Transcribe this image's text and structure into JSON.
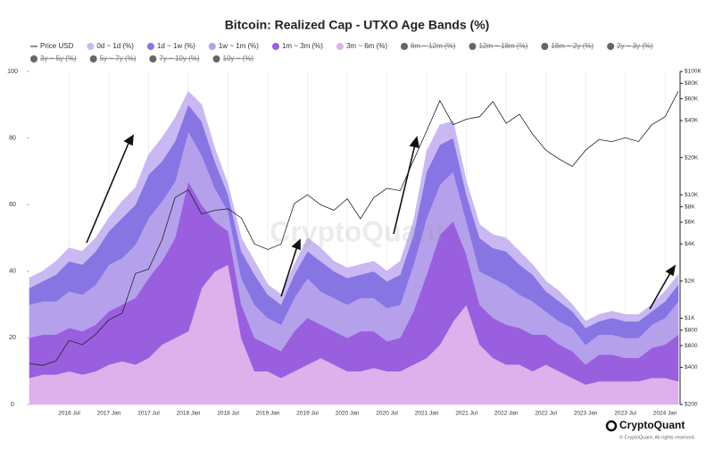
{
  "chart_data": {
    "type": "stacked_area",
    "title": "Bitcoin: Realized Cap - UTXO Age Bands (%)",
    "watermark": "CryptoQuant",
    "brand": "CryptoQuant",
    "copyright": "© CryptoQuant. All rights reserved.",
    "x": [
      "2016-01",
      "2016-03",
      "2016-05",
      "2016-07",
      "2016-09",
      "2016-11",
      "2017-01",
      "2017-03",
      "2017-05",
      "2017-07",
      "2017-09",
      "2017-11",
      "2018-01",
      "2018-03",
      "2018-05",
      "2018-07",
      "2018-09",
      "2018-11",
      "2019-01",
      "2019-03",
      "2019-05",
      "2019-07",
      "2019-09",
      "2019-11",
      "2020-01",
      "2020-03",
      "2020-05",
      "2020-07",
      "2020-09",
      "2020-11",
      "2021-01",
      "2021-03",
      "2021-05",
      "2021-07",
      "2021-09",
      "2021-11",
      "2022-01",
      "2022-03",
      "2022-05",
      "2022-07",
      "2022-09",
      "2022-11",
      "2023-01",
      "2023-03",
      "2023-05",
      "2023-07",
      "2023-09",
      "2023-11",
      "2024-01",
      "2024-03"
    ],
    "xlim": [
      "2016-01",
      "2024-03"
    ],
    "xticks": [
      {
        "value": "2016-07",
        "label": "2016 Jul"
      },
      {
        "value": "2017-01",
        "label": "2017 Jan"
      },
      {
        "value": "2017-07",
        "label": "2017 Jul"
      },
      {
        "value": "2018-01",
        "label": "2018 Jan"
      },
      {
        "value": "2018-07",
        "label": "2018 Jul"
      },
      {
        "value": "2019-01",
        "label": "2019 Jan"
      },
      {
        "value": "2019-07",
        "label": "2019 Jul"
      },
      {
        "value": "2020-01",
        "label": "2020 Jan"
      },
      {
        "value": "2020-07",
        "label": "2020 Jul"
      },
      {
        "value": "2021-01",
        "label": "2021 Jan"
      },
      {
        "value": "2021-07",
        "label": "2021 Jul"
      },
      {
        "value": "2022-01",
        "label": "2022 Jan"
      },
      {
        "value": "2022-07",
        "label": "2022 Jul"
      },
      {
        "value": "2023-01",
        "label": "2023 Jan"
      },
      {
        "value": "2023-07",
        "label": "2023 Jul"
      },
      {
        "value": "2024-01",
        "label": "2024 Jan"
      }
    ],
    "ylim": [
      0,
      100
    ],
    "yticks": [
      0,
      20,
      40,
      60,
      80,
      100
    ],
    "y2lim": [
      200,
      100000
    ],
    "y2log": true,
    "y2ticks": [
      {
        "value": 200,
        "label": "$200"
      },
      {
        "value": 400,
        "label": "$400"
      },
      {
        "value": 600,
        "label": "$600"
      },
      {
        "value": 800,
        "label": "$800"
      },
      {
        "value": 1000,
        "label": "$1K"
      },
      {
        "value": 2000,
        "label": "$2K"
      },
      {
        "value": 4000,
        "label": "$4K"
      },
      {
        "value": 6000,
        "label": "$6K"
      },
      {
        "value": 8000,
        "label": "$8K"
      },
      {
        "value": 10000,
        "label": "$10K"
      },
      {
        "value": 20000,
        "label": "$20K"
      },
      {
        "value": 40000,
        "label": "$40K"
      },
      {
        "value": 60000,
        "label": "$60K"
      },
      {
        "value": 80000,
        "label": "$80K"
      },
      {
        "value": 100000,
        "label": "$100K"
      }
    ],
    "grid": true,
    "series": [
      {
        "name": "Price USD",
        "color": "#222222",
        "axis": "y2",
        "values": [
          430,
          415,
          450,
          660,
          610,
          740,
          970,
          1100,
          2300,
          2500,
          4300,
          9500,
          11000,
          7000,
          7500,
          7700,
          6500,
          4000,
          3600,
          4000,
          8500,
          10000,
          8300,
          7500,
          9300,
          6400,
          9500,
          11300,
          10800,
          19000,
          33000,
          58000,
          37000,
          41000,
          43000,
          57000,
          38000,
          45000,
          31000,
          23000,
          19500,
          17000,
          23000,
          28000,
          27000,
          29000,
          27000,
          37000,
          43000,
          69000
        ]
      },
      {
        "name": "0d ~ 1d (%)",
        "color": "#c9b8f2",
        "values": [
          3,
          3,
          4,
          4,
          4,
          4,
          4,
          5,
          5,
          6,
          7,
          7,
          4,
          5,
          4,
          3,
          4,
          4,
          3,
          3,
          3,
          4,
          4,
          3,
          3,
          3,
          3,
          3,
          4,
          4,
          6,
          6,
          5,
          4,
          4,
          4,
          4,
          4,
          3,
          3,
          3,
          2,
          2,
          2,
          2,
          2,
          2,
          2,
          3,
          3
        ]
      },
      {
        "name": "1d ~ 1w (%)",
        "color": "#8675e3",
        "values": [
          5,
          6,
          8,
          9,
          9,
          10,
          10,
          12,
          12,
          13,
          12,
          12,
          8,
          10,
          8,
          5,
          8,
          9,
          7,
          6,
          7,
          8,
          9,
          8,
          8,
          7,
          8,
          8,
          9,
          9,
          14,
          12,
          10,
          8,
          10,
          9,
          10,
          9,
          8,
          6,
          6,
          5,
          5,
          4,
          5,
          5,
          5,
          4,
          5,
          5
        ]
      },
      {
        "name": "1w ~ 1m (%)",
        "color": "#b5a0ec",
        "values": [
          10,
          10,
          10,
          11,
          11,
          12,
          14,
          14,
          16,
          18,
          18,
          17,
          15,
          15,
          10,
          6,
          8,
          10,
          8,
          8,
          10,
          12,
          10,
          10,
          10,
          10,
          10,
          10,
          10,
          14,
          17,
          15,
          15,
          10,
          10,
          12,
          12,
          10,
          10,
          7,
          7,
          7,
          6,
          6,
          6,
          6,
          6,
          7,
          8,
          10
        ]
      },
      {
        "name": "1m ~ 3m (%)",
        "color": "#9a5fde",
        "values": [
          12,
          12,
          12,
          13,
          13,
          14,
          16,
          17,
          20,
          24,
          25,
          30,
          45,
          25,
          15,
          10,
          10,
          10,
          8,
          8,
          12,
          14,
          10,
          10,
          10,
          12,
          11,
          9,
          10,
          16,
          25,
          33,
          30,
          15,
          12,
          12,
          12,
          11,
          11,
          9,
          8,
          8,
          6,
          8,
          8,
          7,
          7,
          9,
          10,
          14
        ]
      },
      {
        "name": "3m ~ 6m (%)",
        "color": "#deb0ec",
        "values": [
          8,
          9,
          9,
          10,
          9,
          10,
          12,
          13,
          12,
          14,
          18,
          20,
          22,
          35,
          40,
          42,
          20,
          10,
          10,
          8,
          10,
          12,
          14,
          12,
          10,
          10,
          11,
          10,
          10,
          12,
          14,
          18,
          25,
          30,
          18,
          14,
          12,
          12,
          10,
          12,
          10,
          8,
          6,
          7,
          7,
          7,
          7,
          8,
          8,
          7
        ]
      }
    ],
    "hidden_series": [
      "6m ~ 12m (%)",
      "12m ~ 18m (%)",
      "18m ~ 2y (%)",
      "2y ~ 3y (%)",
      "3y ~ 5y (%)",
      "5y ~ 7y (%)",
      "7y ~ 10y (%)",
      "10y ~ (%)"
    ]
  }
}
